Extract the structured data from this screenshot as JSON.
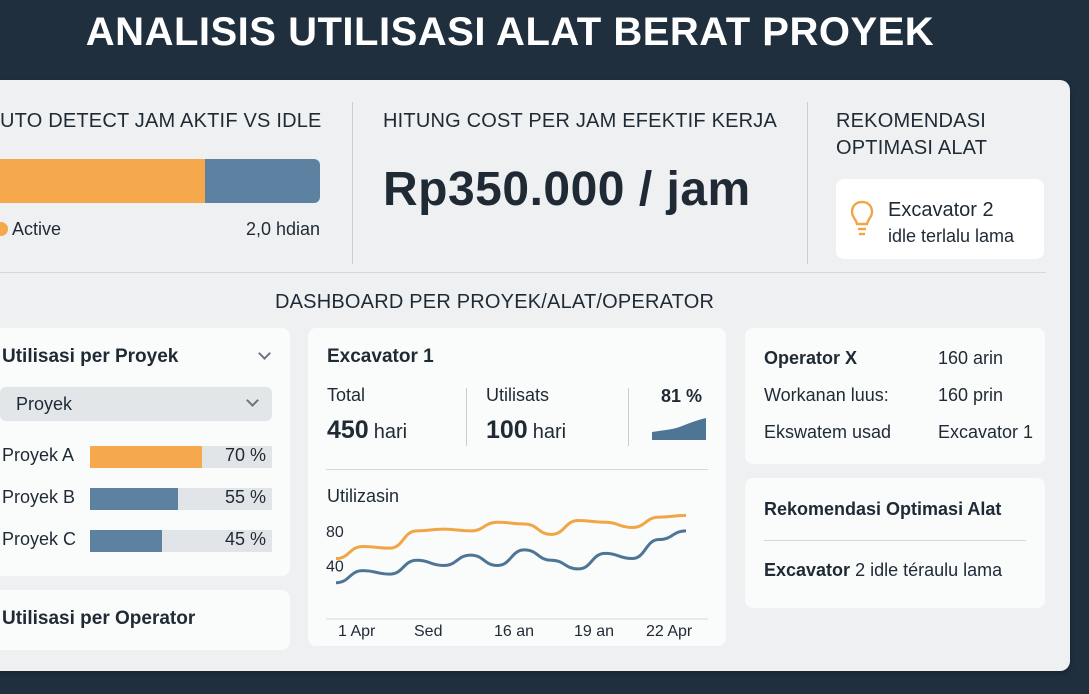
{
  "title": "ANALISIS UTILISASI ALAT BERAT PROYEK",
  "top": {
    "detect": {
      "heading": "UTO DETECT JAM AKTIF VS IDLE",
      "active_fraction": 0.68,
      "active_color": "#f5a84c",
      "idle_color": "#5d81a1",
      "legend_active": "Active",
      "idle_value": "2,0 hdian"
    },
    "cost": {
      "heading": "HITUNG COST PER JAM EFEKTIF KERJA",
      "value": "Rp350.000 / jam"
    },
    "recommend": {
      "heading_line1": "REKOMENDASI",
      "heading_line2": "OPTIMASI ALAT",
      "icon": "lightbulb-icon",
      "item_title": "Excavator 2",
      "item_sub": "idle terlalu lama"
    }
  },
  "dashboard_heading": "DASHBOARD PER PROYEK/ALAT/OPERATOR",
  "project_util": {
    "title": "Utilisasi per Proyek",
    "dropdown_value": "Proyek",
    "items": [
      {
        "label": "Proyek A",
        "pct_label": "70 %",
        "value": 0.7,
        "color": "#f5a84c"
      },
      {
        "label": "Proyek B",
        "pct_label": "55 %",
        "value": 0.55,
        "color": "#5d81a1"
      },
      {
        "label": "Proyek C",
        "pct_label": "45 %",
        "value": 0.45,
        "color": "#5d81a1"
      }
    ]
  },
  "operator_util": {
    "title": "Utilisasi per Operator"
  },
  "excavator": {
    "title": "Excavator 1",
    "total_label": "Total",
    "total_value": "450",
    "total_unit": "hari",
    "util_label": "Utilisats",
    "util_value": "100",
    "util_unit": "hari",
    "pct": "81 %",
    "chart_data": {
      "type": "line",
      "title": "Utilizasin",
      "y_ticks": [
        80,
        40
      ],
      "x_ticks": [
        "1 Apr",
        "Sed",
        "16 an",
        "19 an",
        "22 Apr"
      ],
      "series": [
        {
          "color": "#f0a645",
          "values": [
            48,
            62,
            60,
            80,
            82,
            80,
            90,
            88,
            76,
            92,
            90,
            84,
            96,
            98
          ]
        },
        {
          "color": "#4f7596",
          "values": [
            20,
            34,
            30,
            46,
            40,
            52,
            40,
            58,
            46,
            36,
            54,
            48,
            70,
            80
          ]
        }
      ],
      "ylim": [
        0,
        110
      ]
    }
  },
  "operator": {
    "rows": [
      {
        "label": "Operator X",
        "value": "160 arin",
        "bold": true
      },
      {
        "label": "Workanan luus:",
        "value": "160 prin",
        "bold": false
      },
      {
        "label": "Ekswatem usad",
        "value": "Excavator 1",
        "bold": false
      }
    ]
  },
  "rec_card": {
    "title": "Rekomendasi Optimasi Alat",
    "item_bold": "Excavator",
    "item_rest": " 2 idle téraulu lama"
  }
}
